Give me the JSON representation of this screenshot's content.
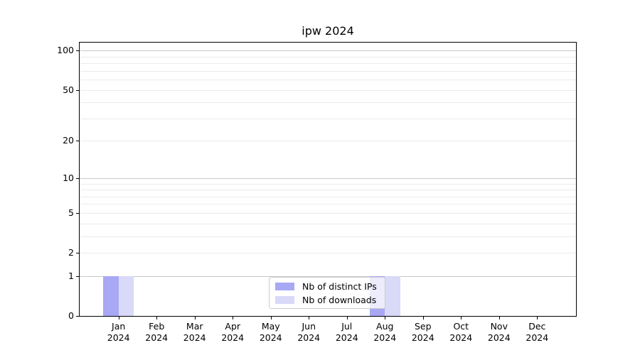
{
  "chart_data": {
    "type": "bar",
    "title": "ipw 2024",
    "months": [
      "Jan",
      "Feb",
      "Mar",
      "Apr",
      "May",
      "Jun",
      "Jul",
      "Aug",
      "Sep",
      "Oct",
      "Nov",
      "Dec"
    ],
    "year": "2024",
    "series": [
      {
        "name": "Nb of distinct IPs",
        "color": "#a8a8f5",
        "values": [
          1,
          0,
          0,
          0,
          0,
          0,
          0,
          1,
          0,
          0,
          0,
          0
        ]
      },
      {
        "name": "Nb of downloads",
        "color": "#d9d9f8",
        "values": [
          1,
          0,
          0,
          0,
          0,
          0,
          0,
          1,
          0,
          0,
          0,
          0
        ]
      }
    ],
    "yscale": "log1p",
    "ylim": [
      0,
      115
    ],
    "y_ticks": [
      0,
      1,
      2,
      5,
      10,
      20,
      50,
      100
    ],
    "major_gridlines": [
      1,
      10,
      100
    ],
    "minor_gridlines": [
      2,
      3,
      4,
      5,
      6,
      7,
      8,
      9,
      20,
      30,
      40,
      50,
      60,
      70,
      80,
      90
    ],
    "grid_major_color": "#c8c8c8",
    "grid_minor_color": "#ebebeb",
    "legend_position": "lower center",
    "xlabel": "",
    "ylabel": ""
  }
}
